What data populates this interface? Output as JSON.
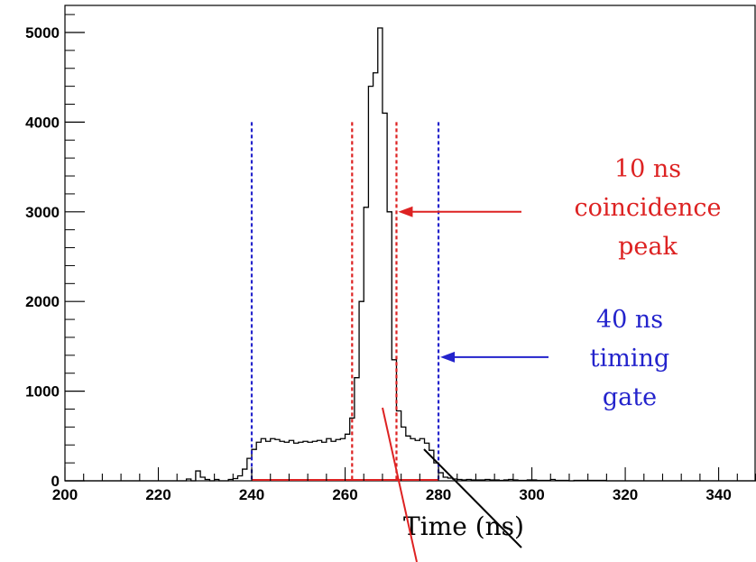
{
  "chart_data": {
    "type": "histogram",
    "title": "",
    "xlabel": "Time (ns)",
    "ylabel": "",
    "xlim": [
      200,
      348
    ],
    "ylim": [
      0,
      5200
    ],
    "x_ticks": [
      200,
      220,
      240,
      260,
      280,
      300,
      320,
      340
    ],
    "y_ticks": [
      0,
      1000,
      2000,
      3000,
      4000,
      5000
    ],
    "bin_width": 1,
    "bins": [
      [
        200,
        0
      ],
      [
        201,
        0
      ],
      [
        202,
        0
      ],
      [
        203,
        0
      ],
      [
        204,
        0
      ],
      [
        205,
        0
      ],
      [
        206,
        0
      ],
      [
        207,
        0
      ],
      [
        208,
        0
      ],
      [
        209,
        0
      ],
      [
        210,
        0
      ],
      [
        211,
        0
      ],
      [
        212,
        0
      ],
      [
        213,
        0
      ],
      [
        214,
        0
      ],
      [
        215,
        0
      ],
      [
        216,
        0
      ],
      [
        217,
        0
      ],
      [
        218,
        0
      ],
      [
        219,
        0
      ],
      [
        220,
        0
      ],
      [
        221,
        0
      ],
      [
        222,
        0
      ],
      [
        223,
        0
      ],
      [
        224,
        0
      ],
      [
        225,
        0
      ],
      [
        226,
        20
      ],
      [
        227,
        0
      ],
      [
        228,
        110
      ],
      [
        229,
        40
      ],
      [
        230,
        15
      ],
      [
        231,
        0
      ],
      [
        232,
        15
      ],
      [
        233,
        0
      ],
      [
        234,
        0
      ],
      [
        235,
        15
      ],
      [
        236,
        25
      ],
      [
        237,
        55
      ],
      [
        238,
        130
      ],
      [
        239,
        250
      ],
      [
        240,
        350
      ],
      [
        241,
        430
      ],
      [
        242,
        470
      ],
      [
        243,
        440
      ],
      [
        244,
        470
      ],
      [
        245,
        460
      ],
      [
        246,
        440
      ],
      [
        247,
        430
      ],
      [
        248,
        450
      ],
      [
        249,
        420
      ],
      [
        250,
        430
      ],
      [
        251,
        440
      ],
      [
        252,
        430
      ],
      [
        253,
        440
      ],
      [
        254,
        450
      ],
      [
        255,
        430
      ],
      [
        256,
        470
      ],
      [
        257,
        440
      ],
      [
        258,
        460
      ],
      [
        259,
        470
      ],
      [
        260,
        520
      ],
      [
        261,
        700
      ],
      [
        262,
        1150
      ],
      [
        263,
        2000
      ],
      [
        264,
        3050
      ],
      [
        265,
        4400
      ],
      [
        266,
        4550
      ],
      [
        267,
        5050
      ],
      [
        268,
        4100
      ],
      [
        269,
        3000
      ],
      [
        270,
        1350
      ],
      [
        271,
        780
      ],
      [
        272,
        600
      ],
      [
        273,
        500
      ],
      [
        274,
        470
      ],
      [
        275,
        450
      ],
      [
        276,
        470
      ],
      [
        277,
        420
      ],
      [
        278,
        340
      ],
      [
        279,
        200
      ],
      [
        280,
        90
      ],
      [
        281,
        40
      ],
      [
        282,
        30
      ],
      [
        283,
        20
      ],
      [
        284,
        15
      ],
      [
        285,
        10
      ],
      [
        286,
        15
      ],
      [
        287,
        10
      ],
      [
        288,
        10
      ],
      [
        289,
        10
      ],
      [
        290,
        15
      ],
      [
        291,
        10
      ],
      [
        292,
        10
      ],
      [
        293,
        5
      ],
      [
        294,
        10
      ],
      [
        295,
        15
      ],
      [
        296,
        10
      ],
      [
        297,
        5
      ],
      [
        298,
        5
      ],
      [
        299,
        10
      ],
      [
        300,
        10
      ],
      [
        301,
        5
      ],
      [
        302,
        5
      ],
      [
        303,
        5
      ],
      [
        304,
        15
      ],
      [
        305,
        5
      ],
      [
        306,
        5
      ],
      [
        307,
        5
      ],
      [
        308,
        0
      ],
      [
        309,
        5
      ],
      [
        310,
        5
      ],
      [
        311,
        5
      ],
      [
        312,
        5
      ],
      [
        313,
        5
      ],
      [
        314,
        5
      ],
      [
        315,
        5
      ],
      [
        316,
        0
      ],
      [
        317,
        0
      ],
      [
        318,
        0
      ],
      [
        319,
        0
      ],
      [
        320,
        0
      ],
      [
        321,
        0
      ],
      [
        322,
        0
      ],
      [
        323,
        0
      ],
      [
        324,
        0
      ],
      [
        325,
        0
      ],
      [
        326,
        0
      ],
      [
        327,
        0
      ],
      [
        328,
        0
      ],
      [
        329,
        0
      ],
      [
        330,
        0
      ],
      [
        331,
        0
      ],
      [
        332,
        0
      ],
      [
        333,
        0
      ],
      [
        334,
        0
      ],
      [
        335,
        0
      ],
      [
        336,
        0
      ],
      [
        337,
        0
      ],
      [
        338,
        0
      ],
      [
        339,
        0
      ],
      [
        340,
        0
      ],
      [
        341,
        0
      ],
      [
        342,
        0
      ],
      [
        343,
        0
      ],
      [
        344,
        0
      ],
      [
        345,
        0
      ],
      [
        346,
        0
      ],
      [
        347,
        0
      ]
    ],
    "baseline_red_overlay": [
      240,
      280
    ],
    "vertical_markers": [
      {
        "x": 240,
        "ymax": 4000,
        "color": "#2323cc"
      },
      {
        "x": 261.5,
        "ymax": 4000,
        "color": "#dd2222"
      },
      {
        "x": 271,
        "ymax": 4000,
        "color": "#dd2222"
      },
      {
        "x": 280,
        "ymax": 4000,
        "color": "#2323cc"
      }
    ],
    "annotations": [
      {
        "lines": [
          "10 ns",
          "coincidence",
          "peak"
        ],
        "color": "#dd2222",
        "arrow_to": [
          271,
          3000
        ]
      },
      {
        "lines": [
          "40 ns",
          "timing",
          "gate"
        ],
        "color": "#2323cc",
        "arrow_to": [
          280,
          1380
        ]
      }
    ],
    "grid": false,
    "legend": "none"
  }
}
